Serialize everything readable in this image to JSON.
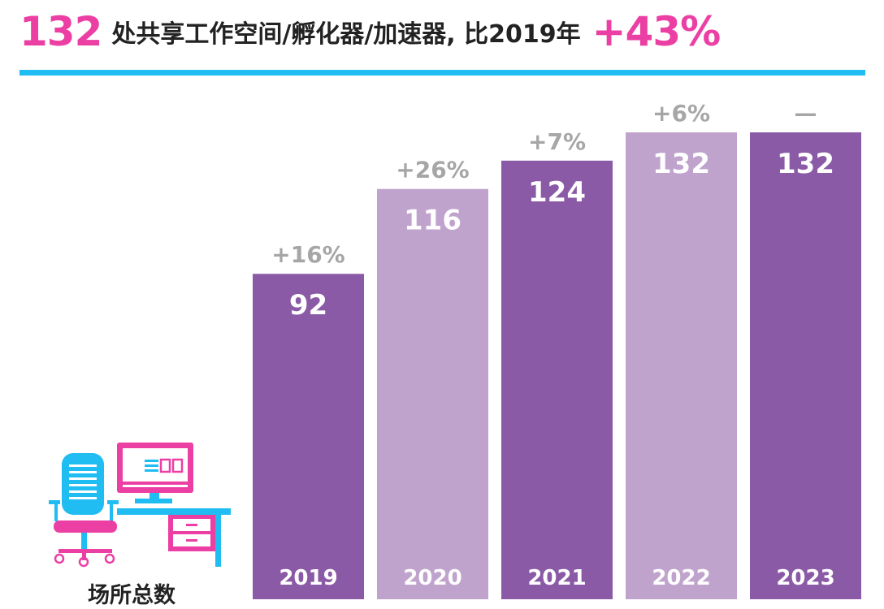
{
  "header": {
    "count": "132",
    "description": "处共享工作空间/孵化器/加速器, 比2019年",
    "growth": "+43%"
  },
  "caption": "场所总数",
  "colors": {
    "dark": "#8b5aa6",
    "light": "#c0a3cd",
    "accent": "#ec3fa4",
    "rule": "#1fbdf2",
    "growth_label": "#a6a6a6"
  },
  "chart_data": {
    "type": "bar",
    "title": "132 处共享工作空间/孵化器/加速器, 比2019年 +43%",
    "categories": [
      "2019",
      "2020",
      "2021",
      "2022",
      "2023"
    ],
    "values": [
      92,
      116,
      124,
      132,
      132
    ],
    "value_labels": [
      "92",
      "116",
      "124",
      "132",
      "132"
    ],
    "growth_labels": [
      "+16%",
      "+26%",
      "+7%",
      "+6%",
      "—"
    ],
    "ylim": [
      0,
      132
    ],
    "grid": false,
    "legend": "none"
  }
}
